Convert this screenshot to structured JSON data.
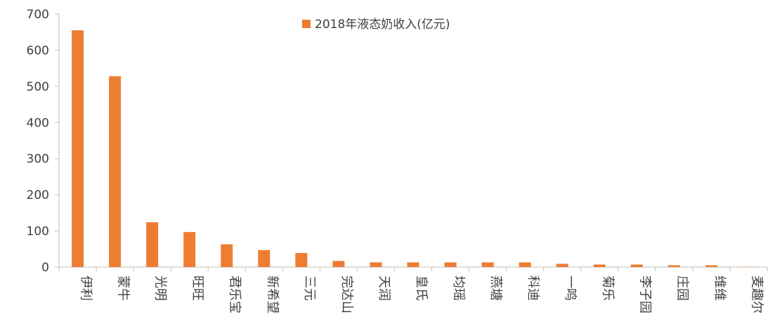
{
  "chart_data": {
    "type": "bar",
    "categories": [
      "伊利",
      "蒙牛",
      "光明",
      "旺旺",
      "君乐宝",
      "新希望",
      "三元",
      "完达山",
      "天润",
      "皇氏",
      "均瑶",
      "燕塘",
      "科迪",
      "一鸣",
      "菊乐",
      "李子园",
      "庄园",
      "维维",
      "麦趣尔"
    ],
    "series": [
      {
        "name": "2018年液态奶收入(亿元)",
        "values": [
          655,
          528,
          124,
          97,
          63,
          47,
          39,
          17,
          13,
          13,
          13,
          13,
          13,
          9,
          7,
          7,
          5,
          5,
          1
        ],
        "color": "#ED7D31"
      }
    ],
    "ylim": [
      0,
      700
    ],
    "yticks": [
      0,
      100,
      200,
      300,
      400,
      500,
      600,
      700
    ],
    "grid": false,
    "legend_position": "top-center"
  }
}
